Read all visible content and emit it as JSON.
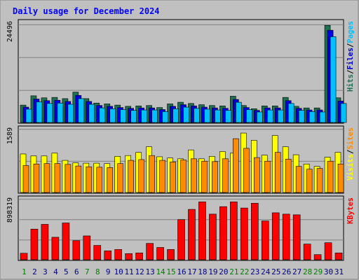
{
  "chart_data": [
    {
      "type": "bar",
      "title": "Daily usage for December 2024",
      "categories": [
        "1",
        "2",
        "3",
        "4",
        "5",
        "6",
        "7",
        "8",
        "9",
        "10",
        "11",
        "12",
        "13",
        "14",
        "15",
        "16",
        "17",
        "18",
        "19",
        "20",
        "21",
        "22",
        "23",
        "24",
        "25",
        "26",
        "27",
        "28",
        "29",
        "30",
        "31"
      ],
      "weekend_days": [
        "1",
        "7",
        "8",
        "14",
        "15",
        "21",
        "22",
        "28",
        "29"
      ],
      "scale_label": "24496",
      "ylim": [
        0,
        24496
      ],
      "side_labels": [
        "Pages",
        "Files",
        "Hits"
      ],
      "series": [
        {
          "name": "Hits",
          "color": "#1e7050",
          "values": [
            4300,
            6600,
            6100,
            6200,
            5900,
            7500,
            5900,
            4800,
            4600,
            4300,
            4000,
            4100,
            4200,
            3700,
            4600,
            5000,
            4700,
            4400,
            4200,
            4100,
            6500,
            4200,
            3400,
            4100,
            4100,
            6200,
            4000,
            3600,
            3600,
            24000,
            6100
          ]
        },
        {
          "name": "Files",
          "color": "#0000e0",
          "values": [
            3800,
            5800,
            5400,
            5500,
            5200,
            6700,
            5200,
            4200,
            4000,
            3700,
            3500,
            3600,
            3600,
            3200,
            4000,
            4400,
            4100,
            3800,
            3600,
            3500,
            5700,
            3700,
            3000,
            3600,
            3600,
            5400,
            3500,
            3100,
            3100,
            22800,
            5300
          ]
        },
        {
          "name": "Pages",
          "color": "#00c0ff",
          "values": [
            3300,
            5100,
            4700,
            4800,
            4500,
            5900,
            4500,
            3600,
            3400,
            3200,
            3000,
            3100,
            3100,
            2700,
            3400,
            3800,
            3500,
            3300,
            3100,
            3000,
            5000,
            3200,
            2600,
            3100,
            3100,
            4700,
            3000,
            2700,
            2600,
            21200,
            4700
          ]
        }
      ]
    },
    {
      "type": "bar",
      "scale_label": "1589",
      "ylim": [
        0,
        1589
      ],
      "side_labels": [
        "Sites",
        "Visits"
      ],
      "series": [
        {
          "name": "Visits",
          "color": "#ffff00",
          "values": [
            960,
            910,
            910,
            980,
            800,
            740,
            730,
            730,
            720,
            900,
            920,
            1000,
            1140,
            890,
            860,
            840,
            1060,
            840,
            900,
            1020,
            980,
            1480,
            1300,
            930,
            1420,
            1140,
            940,
            710,
            650,
            880,
            1000
          ]
        },
        {
          "name": "Sites",
          "color": "#ff8c00",
          "values": [
            670,
            710,
            720,
            720,
            700,
            660,
            640,
            630,
            620,
            720,
            800,
            820,
            920,
            800,
            760,
            810,
            840,
            780,
            770,
            840,
            1340,
            1100,
            870,
            780,
            1000,
            830,
            650,
            580,
            600,
            780,
            710
          ]
        }
      ]
    },
    {
      "type": "bar",
      "scale_label": "898319",
      "ylim": [
        0,
        898319
      ],
      "side_labels": [
        "KBytes"
      ],
      "series": [
        {
          "name": "KBytes",
          "color": "#ff0000",
          "values": [
            95000,
            450000,
            520000,
            330000,
            540000,
            280000,
            350000,
            210000,
            130000,
            150000,
            90000,
            100000,
            240000,
            180000,
            150000,
            590000,
            740000,
            850000,
            670000,
            780000,
            850000,
            760000,
            830000,
            570000,
            690000,
            670000,
            660000,
            230000,
            75000,
            250000,
            100000
          ]
        }
      ]
    }
  ]
}
